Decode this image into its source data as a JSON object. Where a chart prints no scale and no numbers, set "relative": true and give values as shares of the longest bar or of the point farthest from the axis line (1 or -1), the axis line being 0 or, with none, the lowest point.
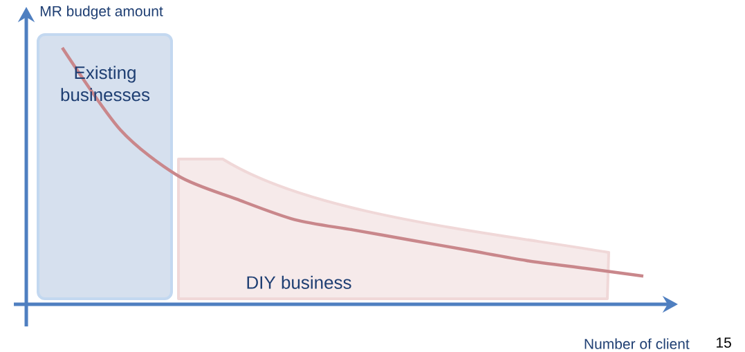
{
  "chart_data": {
    "type": "line",
    "relative": true,
    "xlabel": "Number of client",
    "ylabel": "MR budget amount",
    "categories": [
      null,
      null,
      null,
      null,
      null,
      null,
      null,
      null,
      null,
      null,
      null
    ],
    "series": [
      {
        "color": "#c9878b",
        "values": [
          1,
          0.68,
          0.5,
          0.41,
          0.33,
          0.29,
          0.25,
          0.21,
          0.17,
          0.14,
          0.11
        ]
      }
    ],
    "annotations": [
      "Existing businesses",
      "DIY business",
      "15"
    ],
    "marker": "none",
    "line_style": "solid"
  }
}
